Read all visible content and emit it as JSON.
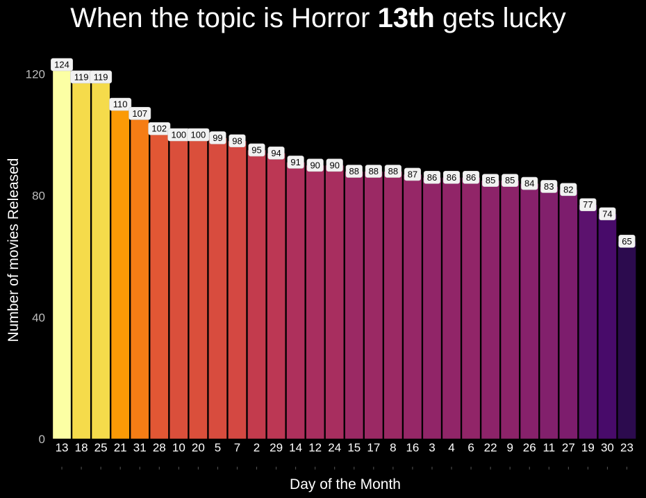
{
  "chart_data": {
    "type": "bar",
    "title_parts": [
      "When the topic is Horror ",
      "13th",
      " gets lucky"
    ],
    "xlabel": "Day of the Month",
    "ylabel": "Number of movies Released",
    "ylim": [
      0,
      124
    ],
    "yticks": [
      0,
      40,
      80,
      120
    ],
    "grid": false,
    "categories": [
      "13",
      "18",
      "25",
      "21",
      "31",
      "28",
      "10",
      "20",
      "5",
      "7",
      "2",
      "29",
      "14",
      "12",
      "24",
      "15",
      "17",
      "8",
      "16",
      "3",
      "4",
      "6",
      "22",
      "9",
      "26",
      "11",
      "27",
      "19",
      "30",
      "23"
    ],
    "values": [
      124,
      119,
      119,
      110,
      107,
      102,
      100,
      100,
      99,
      98,
      95,
      94,
      91,
      90,
      90,
      88,
      88,
      88,
      87,
      86,
      86,
      86,
      85,
      85,
      84,
      83,
      82,
      77,
      74,
      65
    ],
    "colors": [
      "#FCFFA4",
      "#F5DB4B",
      "#F5DB4B",
      "#FB9A06",
      "#F57D15",
      "#E25734",
      "#DA4F3B",
      "#DA4F3B",
      "#D84C3E",
      "#D44842",
      "#C33B4D",
      "#BC3754",
      "#AE305C",
      "#A82E5F",
      "#A82E5F",
      "#9B2964",
      "#9B2964",
      "#9B2964",
      "#962767",
      "#912568",
      "#912568",
      "#912568",
      "#8C2369",
      "#8C2369",
      "#87216B",
      "#82206C",
      "#7D1D6D",
      "#5C126E",
      "#480B6A",
      "#2C0B4E"
    ]
  }
}
